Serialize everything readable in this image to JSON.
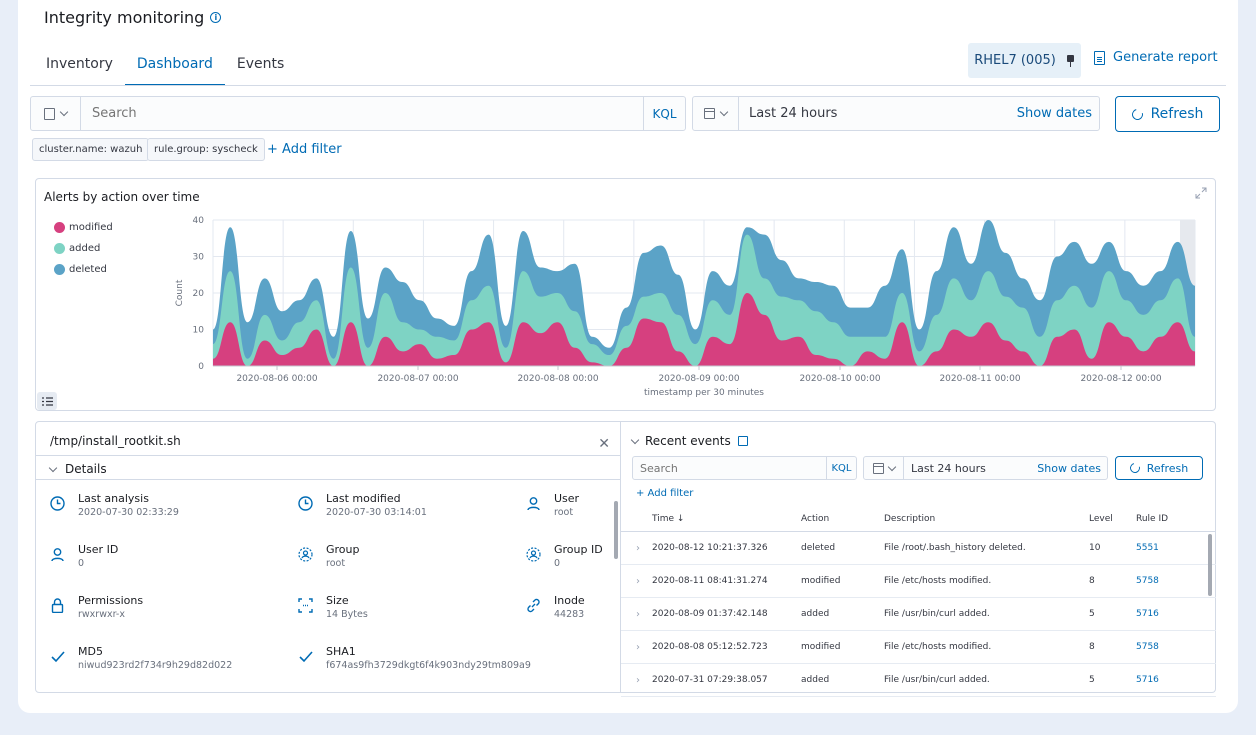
{
  "header": {
    "title": "Integrity monitoring",
    "tabs": [
      "Inventory",
      "Dashboard",
      "Events"
    ],
    "active_tab": "Dashboard",
    "agent_label": "RHEL7 (005)",
    "report_label": "Generate report"
  },
  "search": {
    "placeholder": "Search",
    "kql": "KQL",
    "time_range": "Last 24 hours",
    "show_dates": "Show dates",
    "refresh": "Refresh",
    "filters": [
      "cluster.name: wazuh",
      "rule.group: syscheck"
    ],
    "add_filter": "+ Add filter"
  },
  "chart_data": {
    "type": "area",
    "title": "Alerts by action over time",
    "xlabel": "timestamp per 30 minutes",
    "ylabel": "Count",
    "ylim": [
      0,
      40
    ],
    "yticks": [
      "40",
      "30",
      "20",
      "10",
      "0"
    ],
    "xticks": [
      "2020-08-06 00:00",
      "2020-08-07 00:00",
      "2020-08-08 00:00",
      "2020-08-09 00:00",
      "2020-08-10 00:00",
      "2020-08-11 00:00",
      "2020-08-12 00:00"
    ],
    "legend_position": "left",
    "stacked": true,
    "series": [
      {
        "name": "modified",
        "color": "#d6407f",
        "values": [
          2,
          12,
          0,
          7,
          3,
          5,
          10,
          0,
          12,
          0,
          8,
          4,
          6,
          2,
          3,
          10,
          12,
          1,
          12,
          9,
          12,
          5,
          1,
          0,
          5,
          13,
          12,
          4,
          0,
          8,
          6,
          20,
          14,
          7,
          8,
          3,
          2,
          0,
          4,
          2,
          12,
          0,
          4,
          10,
          8,
          12,
          7,
          4,
          0,
          8,
          10,
          2,
          12,
          8,
          4,
          8,
          12,
          4
        ]
      },
      {
        "name": "added",
        "color": "#7ed3c4",
        "values": [
          4,
          14,
          2,
          7,
          4,
          7,
          8,
          2,
          15,
          5,
          12,
          8,
          4,
          6,
          4,
          8,
          10,
          4,
          14,
          10,
          8,
          10,
          5,
          3,
          6,
          6,
          8,
          10,
          6,
          10,
          8,
          16,
          10,
          12,
          10,
          12,
          10,
          8,
          4,
          6,
          8,
          4,
          10,
          14,
          10,
          14,
          12,
          12,
          8,
          10,
          12,
          14,
          14,
          10,
          10,
          10,
          12,
          4
        ]
      },
      {
        "name": "deleted",
        "color": "#5ba3c7",
        "values": [
          4,
          12,
          10,
          10,
          8,
          6,
          6,
          6,
          10,
          8,
          7,
          11,
          8,
          5,
          4,
          8,
          14,
          6,
          11,
          8,
          6,
          13,
          2,
          2,
          5,
          12,
          13,
          11,
          4,
          8,
          8,
          2,
          12,
          10,
          6,
          8,
          10,
          8,
          8,
          14,
          12,
          6,
          12,
          14,
          10,
          14,
          12,
          8,
          10,
          12,
          12,
          12,
          8,
          8,
          8,
          8,
          10,
          14
        ]
      }
    ]
  },
  "details": {
    "path": "/tmp/install_rootkit.sh",
    "section": "Details",
    "fields": [
      {
        "label": "Last analysis",
        "value": "2020-07-30 02:33:29",
        "icon": "clock-icon"
      },
      {
        "label": "Last modified",
        "value": "2020-07-30 03:14:01",
        "icon": "clock-icon"
      },
      {
        "label": "User",
        "value": "root",
        "icon": "user-icon"
      },
      {
        "label": "User ID",
        "value": "0",
        "icon": "user-icon"
      },
      {
        "label": "Group",
        "value": "root",
        "icon": "group-icon"
      },
      {
        "label": "Group ID",
        "value": "0",
        "icon": "group-icon"
      },
      {
        "label": "Permissions",
        "value": "rwxrwxr-x",
        "icon": "lock-icon"
      },
      {
        "label": "Size",
        "value": "14 Bytes",
        "icon": "size-icon"
      },
      {
        "label": "Inode",
        "value": "44283",
        "icon": "link-icon"
      },
      {
        "label": "MD5",
        "value": "niwud923rd2f734r9h29d82d022",
        "icon": "check-icon"
      },
      {
        "label": "SHA1",
        "value": "f674as9fh3729dkgt6f4k903ndy29tm809a9",
        "icon": "check-icon"
      }
    ]
  },
  "events": {
    "title": "Recent events",
    "search_placeholder": "Search",
    "kql": "KQL",
    "time_range": "Last 24 hours",
    "show_dates": "Show dates",
    "refresh": "Refresh",
    "add_filter": "+ Add filter",
    "columns": [
      "Time ↓",
      "Action",
      "Description",
      "Level",
      "Rule ID"
    ],
    "rows": [
      {
        "time": "2020-08-12  10:21:37.326",
        "action": "deleted",
        "description": "File /root/.bash_history deleted.",
        "level": "10",
        "rule_id": "5551"
      },
      {
        "time": "2020-08-11  08:41:31.274",
        "action": "modified",
        "description": "File /etc/hosts  modified.",
        "level": "8",
        "rule_id": "5758"
      },
      {
        "time": "2020-08-09  01:37:42.148",
        "action": "added",
        "description": "File /usr/bin/curl  added.",
        "level": "5",
        "rule_id": "5716"
      },
      {
        "time": "2020-08-08  05:12:52.723",
        "action": "modified",
        "description": "File /etc/hosts  modified.",
        "level": "8",
        "rule_id": "5758"
      },
      {
        "time": "2020-07-31  07:29:38.057",
        "action": "added",
        "description": "File /usr/bin/curl  added.",
        "level": "5",
        "rule_id": "5716"
      }
    ]
  }
}
